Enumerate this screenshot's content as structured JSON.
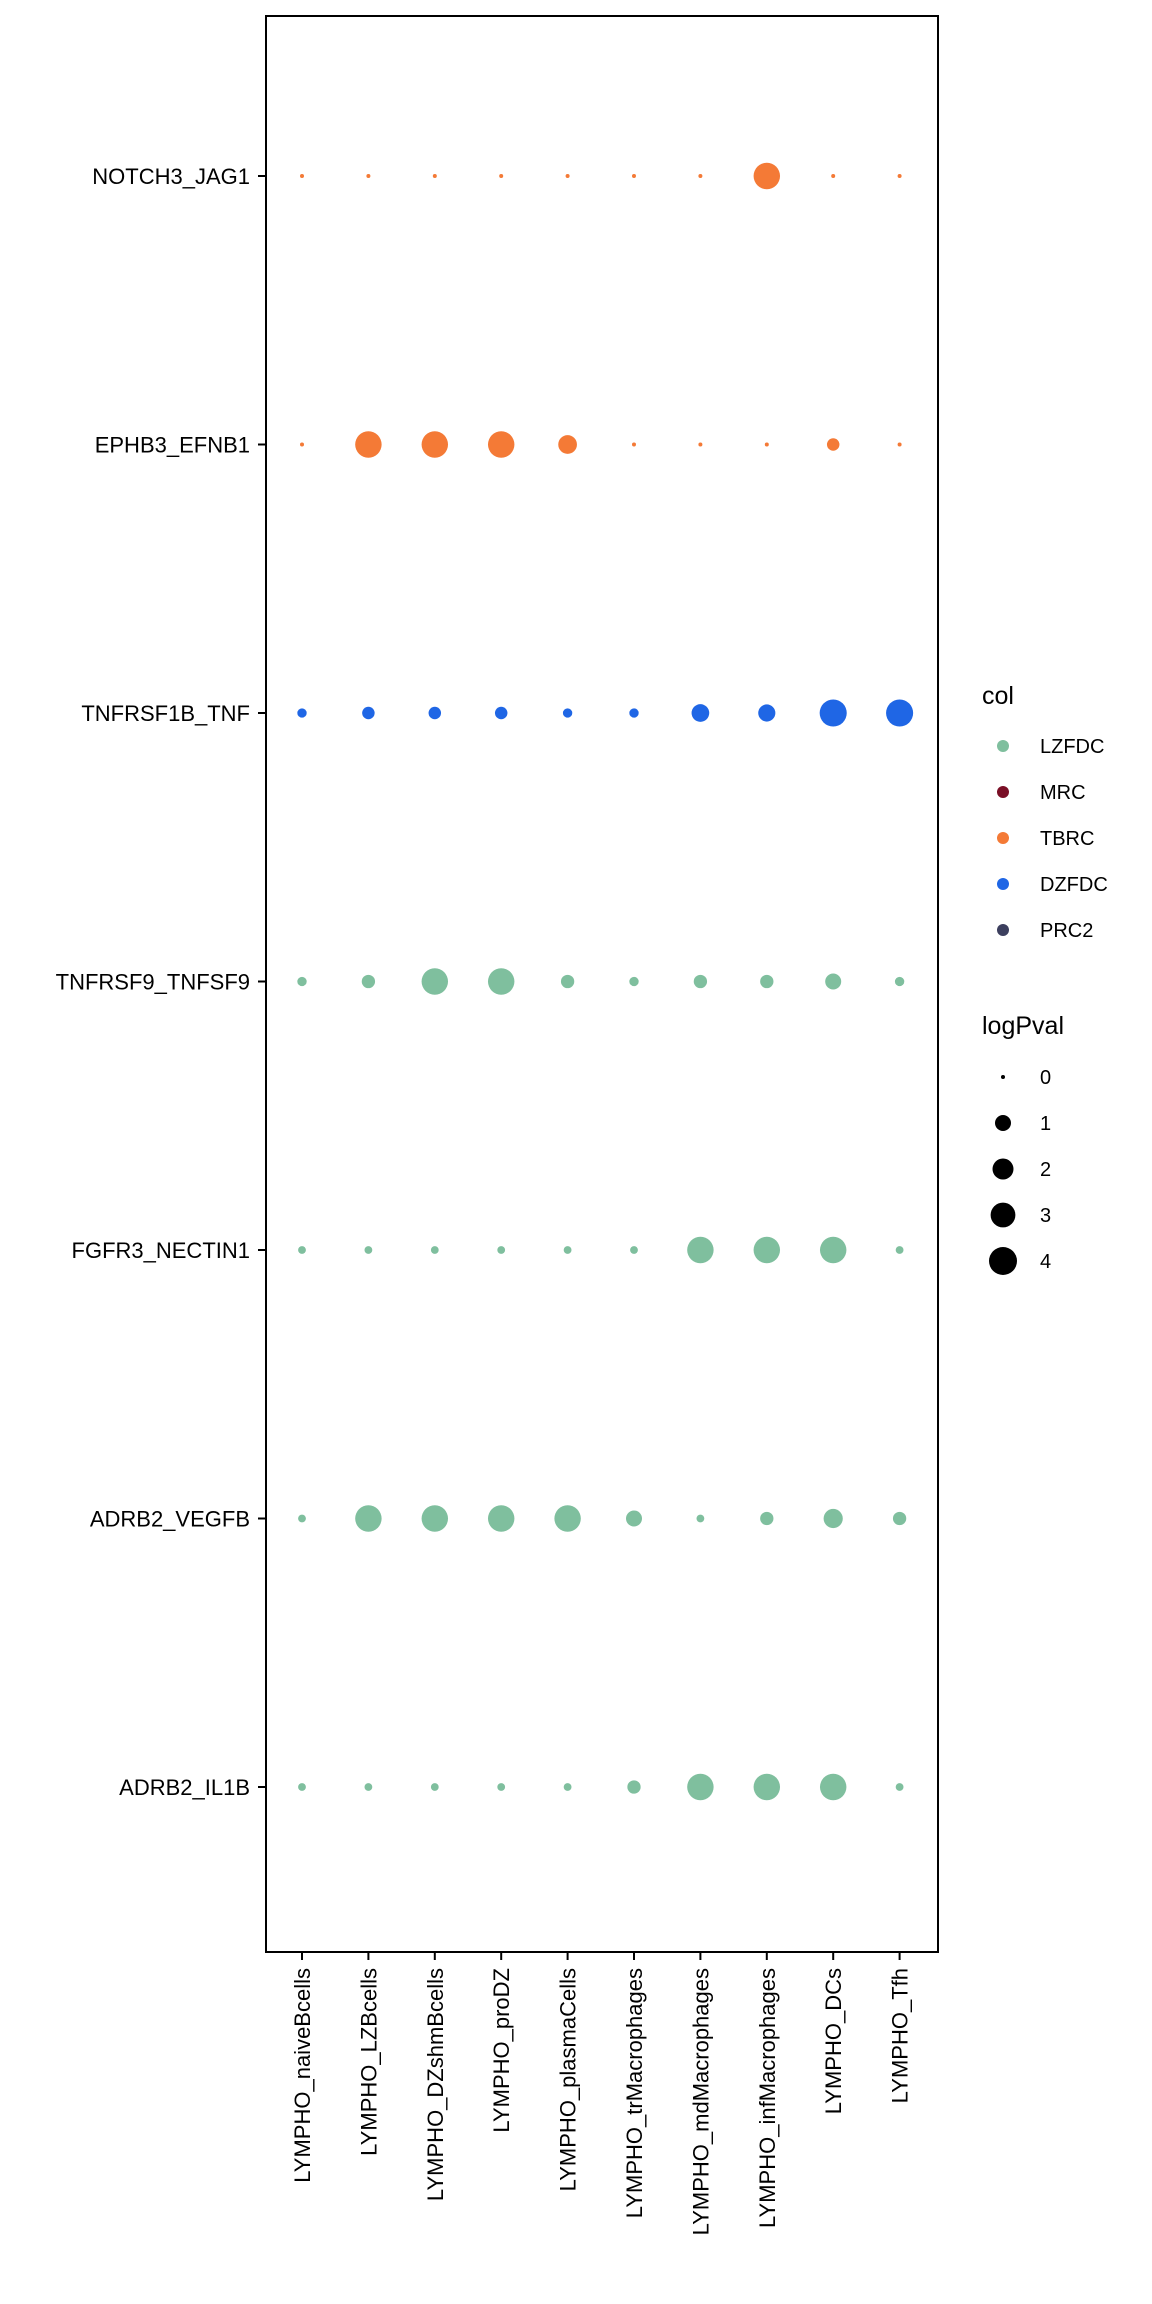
{
  "chart_data": {
    "type": "scatter",
    "x_categories": [
      "LYMPHO_naiveBcells",
      "LYMPHO_LZBcells",
      "LYMPHO_DZshmBcells",
      "LYMPHO_proDZ",
      "LYMPHO_plasmaCells",
      "LYMPHO_trMacrophages",
      "LYMPHO_mdMacrophages",
      "LYMPHO_infMacrophages",
      "LYMPHO_DCs",
      "LYMPHO_Tfh"
    ],
    "y_categories": [
      "NOTCH3_JAG1",
      "EPHB3_EFNB1",
      "TNFRSF1B_TNF",
      "TNFRSF9_TNFSF9",
      "FGFR3_NECTIN1",
      "ADRB2_VEGFB",
      "ADRB2_IL1B"
    ],
    "rows": [
      {
        "label": "NOTCH3_JAG1",
        "col": "TBRC",
        "logPval": [
          0,
          0,
          0,
          0,
          0,
          0,
          0,
          3.5,
          0,
          0
        ]
      },
      {
        "label": "EPHB3_EFNB1",
        "col": "TBRC",
        "logPval": [
          0,
          3.5,
          3.5,
          3.5,
          1.5,
          0,
          0,
          0,
          0.5,
          0
        ]
      },
      {
        "label": "TNFRSF1B_TNF",
        "col": "DZFDC",
        "logPval": [
          0.2,
          0.5,
          0.5,
          0.5,
          0.2,
          0.2,
          1.3,
          1.2,
          3.7,
          3.7
        ]
      },
      {
        "label": "TNFRSF9_TNFSF9",
        "col": "LZFDC",
        "logPval": [
          0.2,
          0.6,
          3.5,
          3.5,
          0.6,
          0.2,
          0.6,
          0.6,
          1.0,
          0.2
        ]
      },
      {
        "label": "FGFR3_NECTIN1",
        "col": "LZFDC",
        "logPval": [
          0.1,
          0.1,
          0.1,
          0.1,
          0.1,
          0.1,
          3.5,
          3.5,
          3.5,
          0.1
        ]
      },
      {
        "label": "ADRB2_VEGFB",
        "col": "LZFDC",
        "logPval": [
          0.1,
          3.5,
          3.5,
          3.5,
          3.5,
          1.0,
          0.1,
          0.6,
          1.6,
          0.6
        ]
      },
      {
        "label": "ADRB2_IL1B",
        "col": "LZFDC",
        "logPval": [
          0.1,
          0.1,
          0.1,
          0.1,
          0.1,
          0.6,
          3.5,
          3.5,
          3.5,
          0.1
        ]
      }
    ],
    "legend_col": {
      "title": "col",
      "entries": [
        {
          "name": "LZFDC",
          "color": "#7fbf9e"
        },
        {
          "name": "MRC",
          "color": "#7a0f26"
        },
        {
          "name": "TBRC",
          "color": "#f47a36"
        },
        {
          "name": "DZFDC",
          "color": "#1f66e5"
        },
        {
          "name": "PRC2",
          "color": "#3c3f5e"
        }
      ]
    },
    "legend_size": {
      "title": "logPval",
      "values": [
        0,
        1,
        2,
        3,
        4
      ],
      "labels": [
        "0",
        "1",
        "2",
        "3",
        "4"
      ]
    },
    "grid": false,
    "legend_position": "right"
  }
}
